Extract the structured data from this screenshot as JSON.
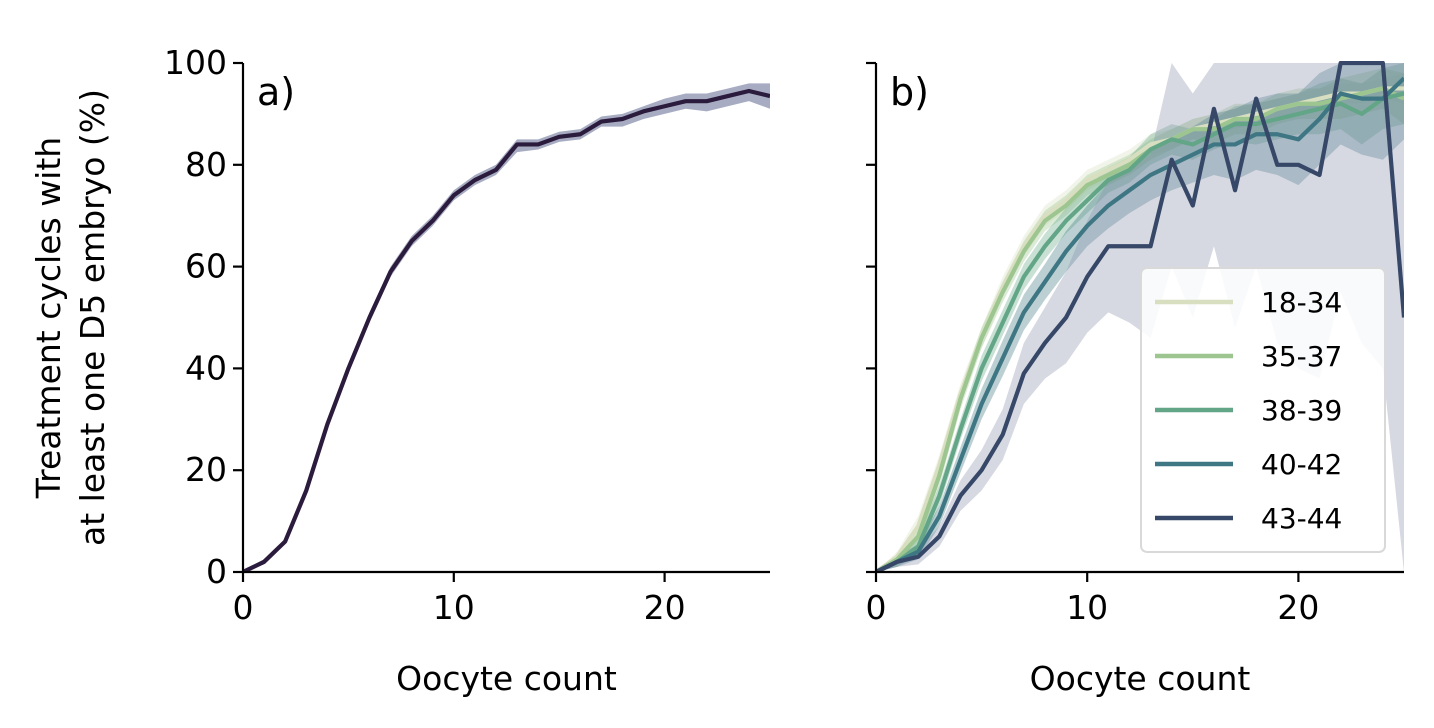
{
  "chart_data": [
    {
      "type": "line",
      "panel_label": "a)",
      "xlabel": "Oocyte count",
      "ylabel": [
        "Treatment cycles with",
        "at least one D5 embryo (%)"
      ],
      "xlim": [
        0,
        25
      ],
      "ylim": [
        0,
        100
      ],
      "xticks": [
        "0",
        "10",
        "20"
      ],
      "yticks": [
        "0",
        "20",
        "40",
        "60",
        "80",
        "100"
      ],
      "grid": false,
      "legend": null,
      "series": [
        {
          "color": "#2b1b3d",
          "band_color": "#8a90ad",
          "x": [
            0,
            1,
            2,
            3,
            4,
            5,
            6,
            7,
            8,
            9,
            10,
            11,
            12,
            13,
            14,
            15,
            16,
            17,
            18,
            19,
            20,
            21,
            22,
            23,
            24,
            25
          ],
          "y": [
            0,
            2,
            6,
            16,
            29,
            40,
            50,
            59,
            65,
            69,
            74,
            77,
            79,
            84,
            84,
            85.5,
            86,
            88.5,
            89,
            90.5,
            91.5,
            92.5,
            92.5,
            93.5,
            94.5,
            93.5
          ],
          "y_lower": [
            0,
            1.5,
            5.5,
            15,
            28,
            39,
            49,
            58,
            64,
            68,
            73,
            76,
            78,
            82.5,
            83,
            84.5,
            85,
            87.5,
            87.5,
            89,
            90,
            91,
            90.5,
            91.5,
            92.5,
            91
          ],
          "y_upper": [
            0,
            2.5,
            6.5,
            17,
            30,
            41,
            51,
            60,
            66,
            70,
            75,
            78,
            80,
            85,
            85,
            86.5,
            87,
            89.5,
            90,
            91.5,
            93,
            94,
            94,
            95,
            96,
            96
          ]
        }
      ]
    },
    {
      "type": "line",
      "panel_label": "b)",
      "xlabel": "Oocyte count",
      "ylabel": "",
      "xlim": [
        0,
        25
      ],
      "ylim": [
        0,
        100
      ],
      "xticks": [
        "0",
        "10",
        "20"
      ],
      "yticks": [
        "",
        "",
        "",
        "",
        "",
        ""
      ],
      "grid": false,
      "legend": "lower-right",
      "series": [
        {
          "name": "18-34",
          "color": "#d8dfc0",
          "band_color": "#d8dfc0",
          "x": [
            0,
            1,
            2,
            3,
            4,
            5,
            6,
            7,
            8,
            9,
            10,
            11,
            12,
            13,
            14,
            15,
            16,
            17,
            18,
            19,
            20,
            21,
            22,
            23,
            24,
            25
          ],
          "y": [
            0,
            3,
            9,
            21,
            35,
            46,
            56,
            64,
            70,
            73,
            77,
            79,
            81,
            84,
            85,
            87,
            88,
            89,
            90,
            91,
            92,
            93,
            94,
            94,
            95,
            95
          ],
          "y_lower": [
            0,
            2,
            7,
            19,
            33,
            44,
            54,
            62,
            68,
            71,
            75,
            77,
            79,
            82,
            83,
            85,
            86,
            87,
            88,
            89,
            90,
            91,
            92,
            92,
            93,
            92
          ],
          "y_upper": [
            0,
            4,
            11,
            23,
            37,
            48,
            58,
            66,
            72,
            75,
            79,
            81,
            83,
            86,
            87,
            89,
            90,
            91,
            92,
            93,
            94,
            95,
            96,
            96,
            97,
            98
          ]
        },
        {
          "name": "35-37",
          "color": "#9cc58f",
          "band_color": "#9cc58f",
          "x": [
            0,
            1,
            2,
            3,
            4,
            5,
            6,
            7,
            8,
            9,
            10,
            11,
            12,
            13,
            14,
            15,
            16,
            17,
            18,
            19,
            20,
            21,
            22,
            23,
            24,
            25
          ],
          "y": [
            0,
            2.5,
            7,
            19,
            34,
            46,
            55,
            63,
            69,
            72,
            76,
            78,
            80,
            83,
            85,
            87,
            87,
            89,
            89,
            91,
            92,
            92,
            93,
            94,
            95,
            93
          ],
          "y_lower": [
            0,
            1.5,
            5,
            17,
            32,
            44,
            53,
            61,
            67,
            70,
            74,
            76,
            78,
            81,
            83,
            85,
            84,
            86,
            86,
            88,
            89,
            89,
            89,
            90,
            91,
            88
          ],
          "y_upper": [
            0,
            3.5,
            9,
            21,
            36,
            48,
            57,
            65,
            71,
            74,
            78,
            80,
            82,
            85,
            87,
            89,
            90,
            92,
            92,
            94,
            95,
            95,
            97,
            98,
            99,
            98
          ]
        },
        {
          "name": "38-39",
          "color": "#63a587",
          "band_color": "#63a587",
          "x": [
            0,
            1,
            2,
            3,
            4,
            5,
            6,
            7,
            8,
            9,
            10,
            11,
            12,
            13,
            14,
            15,
            16,
            17,
            18,
            19,
            20,
            21,
            22,
            23,
            24,
            25
          ],
          "y": [
            0,
            2,
            5,
            15,
            28,
            40,
            49,
            58,
            64,
            69,
            73,
            77,
            79,
            83,
            85,
            84,
            86,
            88,
            88,
            89,
            90,
            91,
            92,
            90,
            93,
            94
          ],
          "y_lower": [
            0,
            1,
            3.5,
            13,
            26,
            37.5,
            46.5,
            55.5,
            61.5,
            66.5,
            70.5,
            74.5,
            76.5,
            80,
            82,
            81,
            83,
            84.5,
            84,
            85,
            86,
            86,
            87,
            84,
            87,
            88
          ],
          "y_upper": [
            0,
            3,
            6.5,
            17,
            30,
            42.5,
            51.5,
            60.5,
            66.5,
            71.5,
            75.5,
            79.5,
            81.5,
            86,
            88,
            87,
            89,
            91.5,
            92,
            93,
            94,
            96,
            97,
            96,
            99,
            100
          ]
        },
        {
          "name": "40-42",
          "color": "#3e7783",
          "band_color": "#3e7783",
          "x": [
            0,
            1,
            2,
            3,
            4,
            5,
            6,
            7,
            8,
            9,
            10,
            11,
            12,
            13,
            14,
            15,
            16,
            17,
            18,
            19,
            20,
            21,
            22,
            23,
            24,
            25
          ],
          "y": [
            0,
            2,
            4,
            11,
            22,
            33,
            42,
            51,
            57,
            63,
            68,
            72,
            75,
            78,
            80,
            82,
            84,
            84,
            86,
            86,
            85,
            89,
            94,
            93,
            93,
            97
          ],
          "y_lower": [
            0,
            1,
            2.5,
            9,
            19.5,
            30,
            38.5,
            47.5,
            53.5,
            59,
            64,
            67.5,
            70.5,
            73,
            75,
            76.5,
            78,
            77,
            79,
            78,
            76,
            80,
            84,
            82,
            81,
            85
          ],
          "y_upper": [
            0,
            3,
            5.5,
            13,
            24.5,
            36,
            45.5,
            54.5,
            60.5,
            67,
            72,
            76.5,
            79.5,
            83,
            85,
            87.5,
            90,
            91,
            93,
            94,
            94,
            98,
            100,
            100,
            100,
            100
          ]
        },
        {
          "name": "43-44",
          "color": "#364768",
          "band_color": "#8a93ad",
          "x": [
            0,
            1,
            2,
            3,
            4,
            5,
            6,
            7,
            8,
            9,
            10,
            11,
            12,
            13,
            14,
            15,
            16,
            17,
            18,
            19,
            20,
            21,
            22,
            23,
            24,
            25
          ],
          "y": [
            0,
            2,
            3,
            7,
            15,
            20,
            27,
            39,
            45,
            50,
            58,
            64,
            64,
            64,
            81,
            72,
            91,
            75,
            93,
            80,
            80,
            78,
            100,
            100,
            100,
            50
          ],
          "y_lower": [
            0,
            1,
            1.5,
            5,
            12,
            16,
            22,
            33,
            38,
            41,
            47,
            51,
            49,
            46,
            60,
            50,
            64,
            48,
            60,
            45,
            40,
            38,
            55,
            45,
            40,
            0
          ],
          "y_upper": [
            0,
            3,
            4.5,
            9,
            18,
            24,
            32,
            45,
            52,
            59,
            69,
            77,
            79,
            82,
            100,
            94,
            100,
            100,
            100,
            100,
            100,
            100,
            100,
            100,
            100,
            100
          ]
        }
      ]
    }
  ]
}
